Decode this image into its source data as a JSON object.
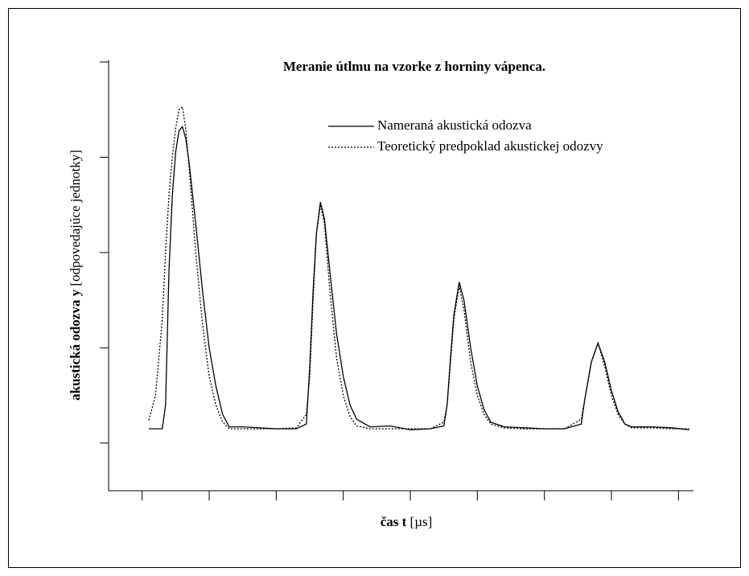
{
  "chart_data": {
    "type": "line",
    "title": "Meranie útlmu na vzorke z horniny vápenca.",
    "x_label": "čas t",
    "x_unit": "[µs]",
    "y_label": "akustická odozva y",
    "y_unit": "[odpovedajúce jednotky]",
    "xlim": [
      -0.5,
      8.2
    ],
    "xticks": [
      0,
      1,
      2,
      3,
      4,
      5,
      6,
      7,
      8
    ],
    "ylim": [
      -0.5,
      4
    ],
    "yticks": [
      0,
      1,
      2,
      3,
      4
    ],
    "x": [
      0.1,
      0.2,
      0.3,
      0.35,
      0.4,
      0.45,
      0.5,
      0.55,
      0.6,
      0.65,
      0.7,
      0.8,
      0.9,
      1.0,
      1.1,
      1.2,
      1.3,
      1.5,
      2.0,
      2.3,
      2.45,
      2.5,
      2.55,
      2.6,
      2.66,
      2.72,
      2.8,
      2.9,
      3.0,
      3.1,
      3.2,
      3.4,
      3.7,
      4.0,
      4.3,
      4.5,
      4.55,
      4.6,
      4.65,
      4.73,
      4.8,
      4.9,
      5.0,
      5.1,
      5.2,
      5.4,
      5.7,
      6.0,
      6.3,
      6.55,
      6.6,
      6.7,
      6.8,
      6.9,
      7.0,
      7.1,
      7.2,
      7.3,
      7.6,
      7.9,
      8.16
    ],
    "series": [
      {
        "name": "Nameraná akustická odozva",
        "color": "#000000",
        "style": "solid",
        "values": [
          0.15,
          0.15,
          0.15,
          0.4,
          1.8,
          2.6,
          3.05,
          3.28,
          3.32,
          3.2,
          2.95,
          2.3,
          1.6,
          1.0,
          0.6,
          0.3,
          0.17,
          0.17,
          0.15,
          0.15,
          0.2,
          0.8,
          1.6,
          2.2,
          2.53,
          2.35,
          1.8,
          1.15,
          0.7,
          0.4,
          0.25,
          0.17,
          0.18,
          0.14,
          0.15,
          0.18,
          0.4,
          0.9,
          1.35,
          1.69,
          1.5,
          1.0,
          0.6,
          0.35,
          0.22,
          0.17,
          0.16,
          0.15,
          0.15,
          0.2,
          0.45,
          0.85,
          1.05,
          0.85,
          0.55,
          0.33,
          0.2,
          0.17,
          0.17,
          0.16,
          0.14
        ]
      },
      {
        "name": "Teoretický predpoklad akustickej odozvy",
        "color": "#000000",
        "style": "dotted",
        "values": [
          0.24,
          0.5,
          1.3,
          2.0,
          2.6,
          3.0,
          3.3,
          3.5,
          3.53,
          3.3,
          2.9,
          2.0,
          1.25,
          0.7,
          0.4,
          0.22,
          0.15,
          0.15,
          0.15,
          0.16,
          0.3,
          0.7,
          1.5,
          2.2,
          2.5,
          2.3,
          1.6,
          0.9,
          0.5,
          0.28,
          0.18,
          0.15,
          0.15,
          0.15,
          0.15,
          0.22,
          0.4,
          0.85,
          1.3,
          1.65,
          1.4,
          0.85,
          0.5,
          0.3,
          0.2,
          0.16,
          0.15,
          0.15,
          0.15,
          0.25,
          0.45,
          0.85,
          1.05,
          0.8,
          0.5,
          0.3,
          0.2,
          0.16,
          0.16,
          0.15,
          0.15
        ]
      }
    ]
  }
}
